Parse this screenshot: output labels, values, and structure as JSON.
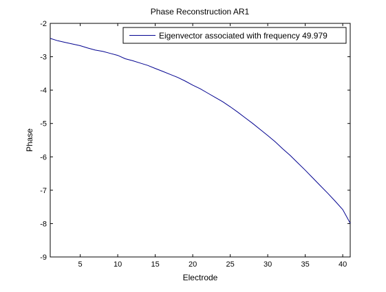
{
  "chart_data": {
    "type": "line",
    "title": "Phase Reconstruction AR1",
    "xlabel": "Electrode",
    "ylabel": "Phase",
    "xlim": [
      1,
      41
    ],
    "ylim": [
      -9,
      -2
    ],
    "xticks": [
      5,
      10,
      15,
      20,
      25,
      30,
      35,
      40
    ],
    "yticks": [
      -2,
      -3,
      -4,
      -5,
      -6,
      -7,
      -8,
      -9
    ],
    "grid": false,
    "legend_position": "top-right",
    "line_color": "#00008f",
    "series": [
      {
        "name": "Eigenvector associated with frequency 49.979",
        "x": [
          1,
          2,
          3,
          4,
          5,
          6,
          7,
          8,
          9,
          10,
          11,
          12,
          13,
          14,
          15,
          16,
          17,
          18,
          19,
          20,
          21,
          22,
          23,
          24,
          25,
          26,
          27,
          28,
          29,
          30,
          31,
          32,
          33,
          34,
          35,
          36,
          37,
          38,
          39,
          40,
          41
        ],
        "y": [
          -2.45,
          -2.52,
          -2.57,
          -2.62,
          -2.67,
          -2.74,
          -2.8,
          -2.84,
          -2.9,
          -2.96,
          -3.06,
          -3.12,
          -3.19,
          -3.26,
          -3.35,
          -3.44,
          -3.53,
          -3.62,
          -3.73,
          -3.85,
          -3.96,
          -4.09,
          -4.22,
          -4.35,
          -4.5,
          -4.66,
          -4.83,
          -5.0,
          -5.18,
          -5.36,
          -5.55,
          -5.76,
          -5.96,
          -6.18,
          -6.4,
          -6.63,
          -6.86,
          -7.09,
          -7.33,
          -7.58,
          -7.99
        ]
      }
    ]
  }
}
